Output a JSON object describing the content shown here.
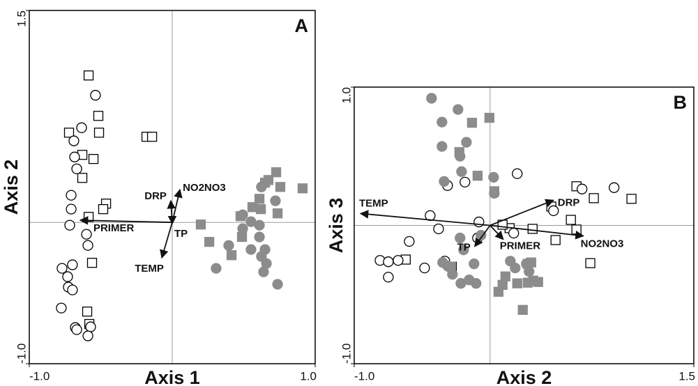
{
  "chart_data": [
    {
      "type": "scatter",
      "panel_label": "A",
      "xlabel": "Axis 1",
      "ylabel": "Axis 2",
      "xlim": [
        -1,
        1
      ],
      "ylim": [
        -1,
        1.5
      ],
      "xticks": [
        {
          "value": -1,
          "label": "-1.0"
        },
        {
          "value": 1,
          "label": "1.0"
        }
      ],
      "yticks": [
        {
          "value": -1,
          "label": "-1.0"
        },
        1.5
      ],
      "series": [
        {
          "marker": "square",
          "color": "#000000",
          "fill": "#ffffff",
          "x": [
            -0.585,
            -0.517,
            -0.722,
            -0.512,
            -0.629,
            -0.551,
            -0.629,
            -0.18,
            -0.141,
            -0.463,
            -0.483,
            -0.585,
            -0.561,
            -0.595,
            -0.58
          ],
          "values": [
            1.04,
            0.754,
            0.635,
            0.635,
            0.478,
            0.449,
            0.315,
            0.606,
            0.606,
            0.133,
            0.094,
            0.039,
            -0.286,
            -0.631,
            -0.719
          ]
        },
        {
          "marker": "circle",
          "color": "#000000",
          "fill": "#ffffff",
          "x": [
            -0.537,
            -0.634,
            -0.688,
            -0.683,
            -0.668,
            -0.707,
            -0.707,
            -0.717,
            -0.6,
            -0.59,
            -0.771,
            -0.698,
            -0.732,
            -0.727,
            -0.698,
            -0.776,
            -0.678,
            -0.668,
            -0.571,
            -0.59
          ],
          "values": [
            0.9,
            0.67,
            0.577,
            0.463,
            0.379,
            0.192,
            0.094,
            -0.02,
            -0.084,
            -0.163,
            -0.325,
            -0.3,
            -0.384,
            -0.458,
            -0.478,
            -0.606,
            -0.744,
            -0.759,
            -0.739,
            -0.803
          ]
        },
        {
          "marker": "square",
          "color": "#8c8c8c",
          "fill": "#8c8c8c",
          "x": [
            0.727,
            0.673,
            0.649,
            0.756,
            0.912,
            0.61,
            0.561,
            0.62,
            0.737,
            0.478,
            0.2,
            0.259,
            0.488,
            0.415
          ],
          "values": [
            0.355,
            0.3,
            0.281,
            0.251,
            0.241,
            0.167,
            0.108,
            0.094,
            0.064,
            0.044,
            -0.015,
            -0.138,
            -0.103,
            -0.232
          ]
        },
        {
          "marker": "circle",
          "color": "#8c8c8c",
          "fill": "#8c8c8c",
          "x": [
            0.624,
            0.722,
            0.493,
            0.551,
            0.61,
            0.493,
            0.61,
            0.551,
            0.649,
            0.624,
            0.395,
            0.659,
            0.639,
            0.307,
            0.737
          ],
          "values": [
            0.251,
            0.153,
            0.054,
            0.005,
            -0.02,
            -0.044,
            -0.103,
            -0.192,
            -0.192,
            -0.241,
            -0.163,
            -0.291,
            -0.35,
            -0.325,
            -0.438
          ]
        }
      ],
      "vectors": [
        {
          "label": "DRP",
          "x": -0.01,
          "y": 0.153
        },
        {
          "label": "NO2NO3",
          "x": 0.054,
          "y": 0.232
        },
        {
          "label": "TP",
          "x": 0.0,
          "y": -0.01
        },
        {
          "label": "TEMP",
          "x": -0.073,
          "y": -0.251
        },
        {
          "label": "PRIMER",
          "x": -0.644,
          "y": 0.015
        }
      ]
    },
    {
      "type": "scatter",
      "panel_label": "B",
      "xlabel": "Axis 2",
      "ylabel": "Axis 3",
      "xlim": [
        -1,
        1.5
      ],
      "ylim": [
        -1,
        1
      ],
      "xticks": [
        {
          "value": -1,
          "label": "-1.0"
        },
        1.5
      ],
      "yticks": [
        {
          "value": -1,
          "label": "-1.0"
        },
        {
          "value": 1,
          "label": "1.0"
        }
      ],
      "series": [
        {
          "marker": "square",
          "color": "#000000",
          "fill": "#ffffff",
          "x": [
            0.636,
            0.764,
            1.041,
            0.451,
            0.595,
            0.636,
            0.313,
            0.144,
            0.092,
            0.482,
            0.738,
            -0.621,
            -0.282
          ],
          "values": [
            0.283,
            0.197,
            0.192,
            0.136,
            0.04,
            -0.03,
            -0.025,
            -0.02,
            0.005,
            -0.106,
            -0.273,
            -0.247,
            -0.298
          ]
        },
        {
          "marker": "circle",
          "color": "#000000",
          "fill": "#ffffff",
          "x": [
            -0.313,
            -0.185,
            0.2,
            0.677,
            0.913,
            0.467,
            -0.082,
            -0.092,
            -0.441,
            -0.379,
            -0.595,
            -0.81,
            -0.749,
            -0.677,
            -0.749,
            -0.482,
            -0.333,
            0.174
          ],
          "values": [
            0.288,
            0.313,
            0.374,
            0.263,
            0.273,
            0.106,
            0.025,
            -0.091,
            0.071,
            -0.025,
            -0.116,
            -0.253,
            -0.263,
            -0.253,
            -0.374,
            -0.308,
            -0.258,
            -0.056
          ]
        },
        {
          "marker": "square",
          "color": "#8c8c8c",
          "fill": "#8c8c8c",
          "x": [
            -0.005,
            -0.133,
            -0.226,
            -0.092,
            0.031,
            -0.287,
            0.113,
            0.092,
            0.062,
            0.2,
            0.277,
            0.318,
            0.354,
            0.241,
            0.277,
            0.303
          ],
          "values": [
            0.778,
            0.742,
            0.53,
            0.359,
            0.247,
            -0.298,
            -0.369,
            -0.43,
            -0.48,
            -0.419,
            -0.414,
            -0.399,
            -0.409,
            -0.611,
            -0.278,
            -0.268
          ]
        },
        {
          "marker": "circle",
          "color": "#8c8c8c",
          "fill": "#8c8c8c",
          "x": [
            -0.431,
            -0.236,
            -0.354,
            -0.174,
            -0.354,
            -0.221,
            -0.21,
            -0.338,
            0.026,
            0.031,
            -0.221,
            -0.067,
            -0.195,
            -0.118,
            -0.349,
            -0.313,
            -0.277,
            -0.215,
            -0.154,
            -0.103,
            0.149,
            0.185,
            0.267,
            0.287
          ],
          "values": [
            0.919,
            0.838,
            0.747,
            0.601,
            0.571,
            0.5,
            0.389,
            0.318,
            0.348,
            0.232,
            -0.091,
            -0.071,
            -0.177,
            -0.278,
            -0.268,
            -0.293,
            -0.354,
            -0.419,
            -0.394,
            -0.419,
            -0.258,
            -0.308,
            -0.278,
            -0.333
          ]
        }
      ],
      "vectors": [
        {
          "label": "TEMP",
          "x": -0.954,
          "y": 0.086
        },
        {
          "label": "DRP",
          "x": 0.467,
          "y": 0.182
        },
        {
          "label": "NO2NO3",
          "x": 0.687,
          "y": -0.076
        },
        {
          "label": "TP",
          "x": -0.113,
          "y": -0.152
        },
        {
          "label": "PRIMER",
          "x": 0.097,
          "y": -0.101
        }
      ]
    }
  ]
}
